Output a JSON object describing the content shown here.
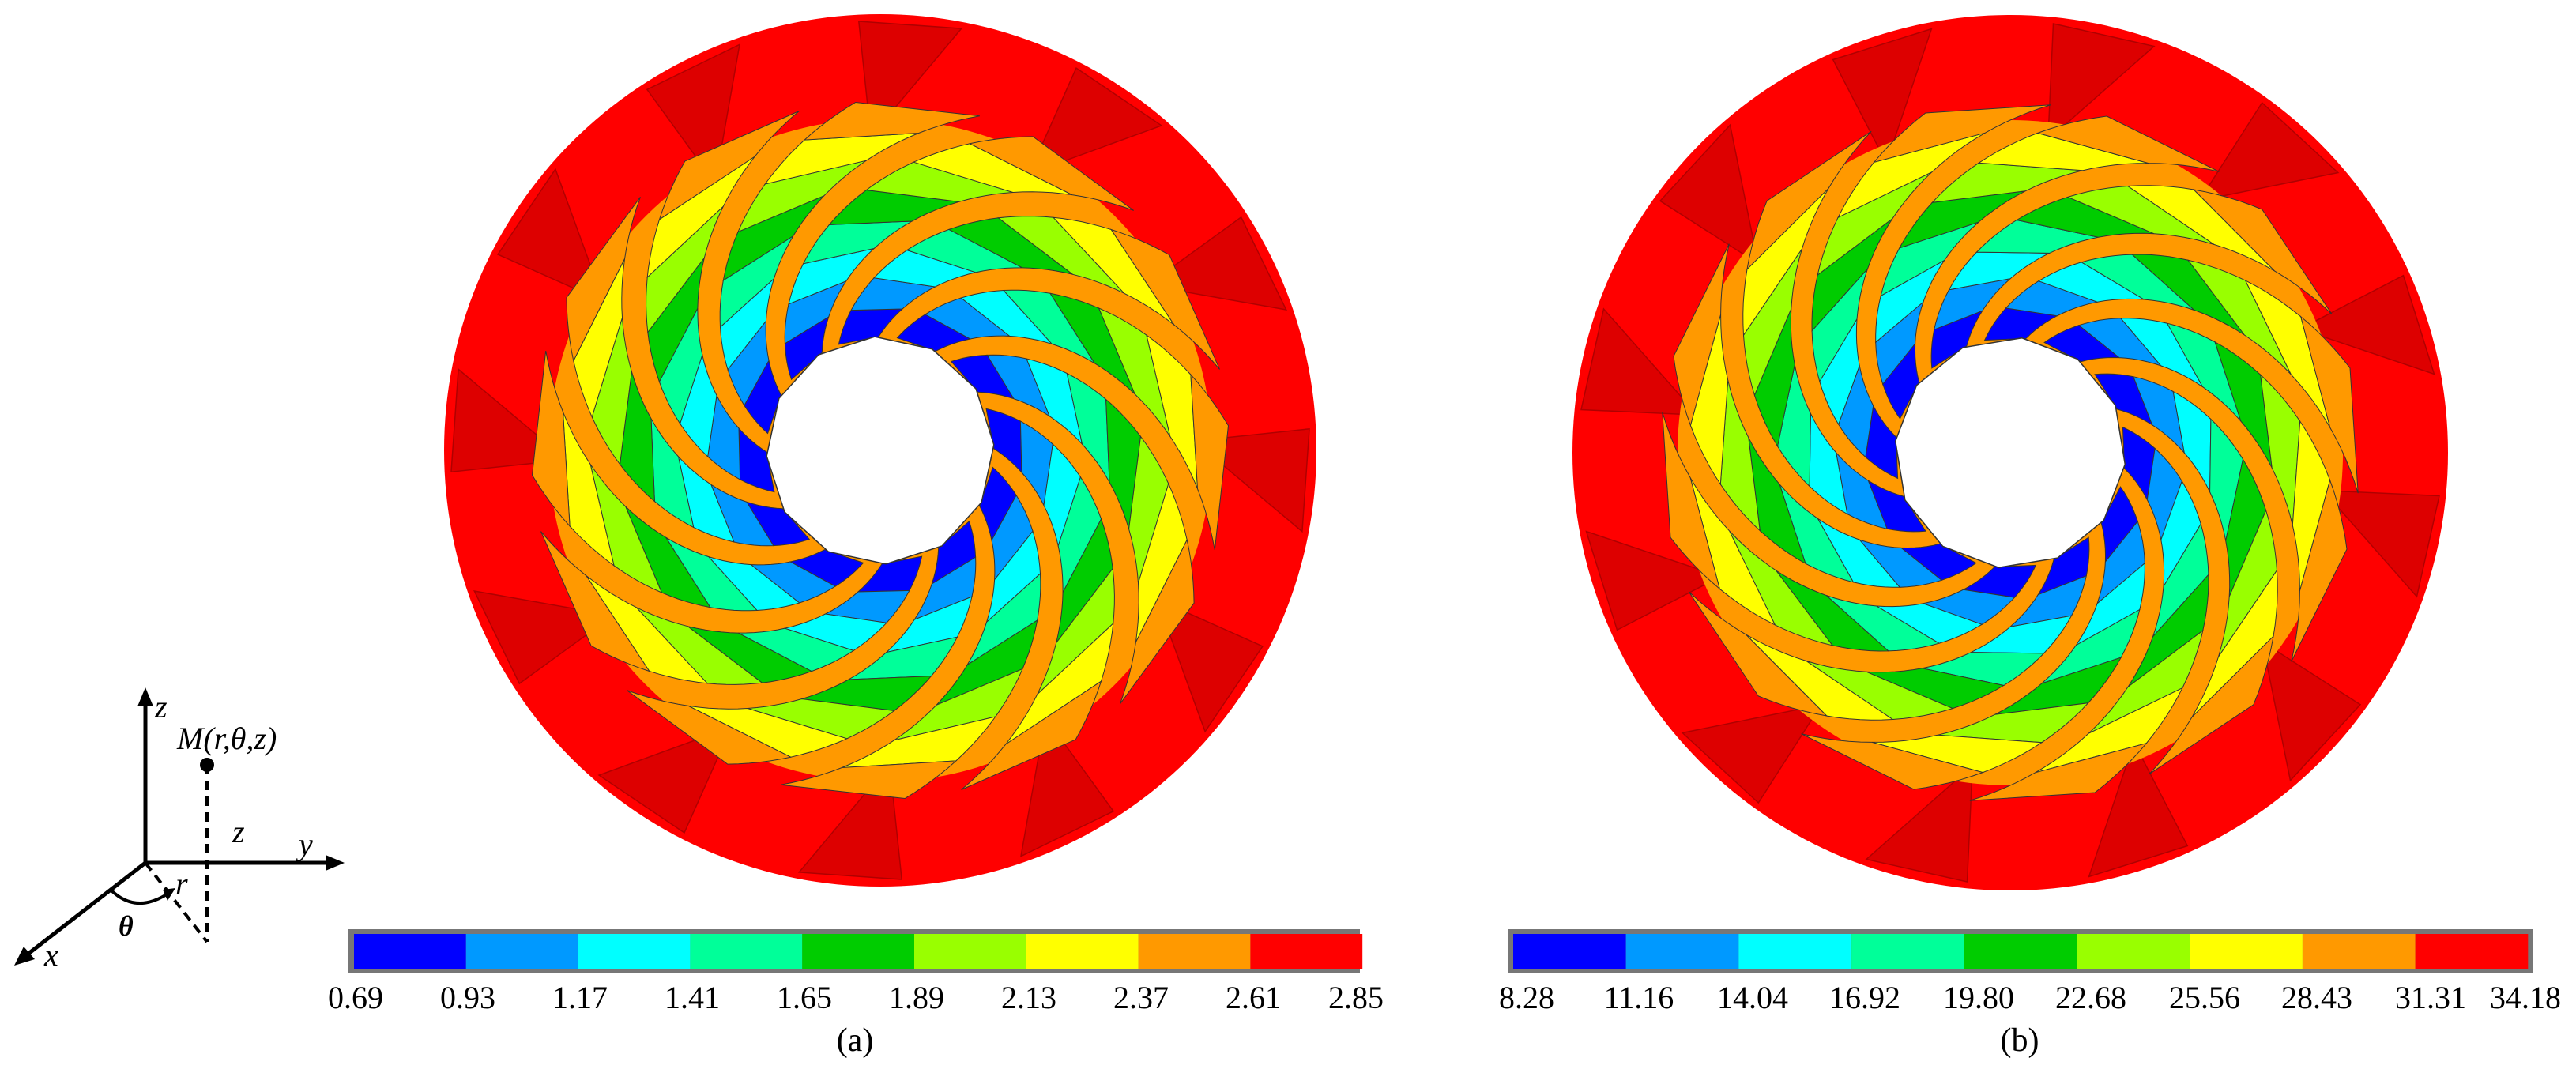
{
  "palette": [
    "#0000ff",
    "#0099ff",
    "#00ffff",
    "#00ff99",
    "#00cc00",
    "#99ff00",
    "#ffff00",
    "#ff9900",
    "#ff0000"
  ],
  "coordinate_system": {
    "x": "x",
    "y": "y",
    "z": "z",
    "point": "M(r,θ,z)",
    "r": "r",
    "theta": "θ",
    "z_proj": "z"
  },
  "panels": [
    {
      "caption": "(a)",
      "scale_ticks": [
        "0.69",
        "0.93",
        "1.17",
        "1.41",
        "1.65",
        "1.89",
        "2.13",
        "2.37",
        "2.61",
        "2.85"
      ]
    },
    {
      "caption": "(b)",
      "scale_ticks": [
        "8.28",
        "11.16",
        "14.04",
        "16.92",
        "19.80",
        "22.68",
        "25.56",
        "28.43",
        "31.31",
        "34.18"
      ]
    }
  ]
}
